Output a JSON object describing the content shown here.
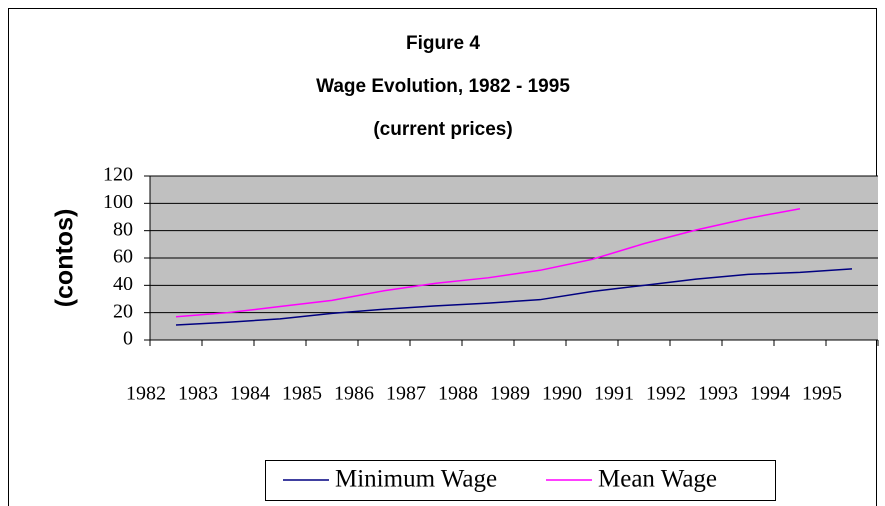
{
  "chart_data": {
    "type": "line",
    "title": "Figure 4",
    "subtitle": "Wage Evolution, 1982 - 1995",
    "note": "(current prices)",
    "y_label": "(contos)",
    "categories": [
      "1982",
      "1983",
      "1984",
      "1985",
      "1986",
      "1987",
      "1988",
      "1989",
      "1990",
      "1991",
      "1992",
      "1993",
      "1994",
      "1995"
    ],
    "series": [
      {
        "name": "Minimum Wage",
        "color": "#000080",
        "values": [
          11,
          13,
          15.5,
          19.5,
          22.5,
          25,
          27,
          29.5,
          35.5,
          40,
          44.5,
          48,
          49.5,
          52
        ]
      },
      {
        "name": "Mean Wage",
        "color": "#ff00ff",
        "values": [
          17,
          20,
          24.5,
          29,
          36,
          41.5,
          45.5,
          51,
          59,
          70.5,
          80.5,
          89,
          96,
          null
        ]
      }
    ],
    "ylim": [
      0,
      120
    ],
    "yticks": [
      0,
      20,
      40,
      60,
      80,
      100,
      120
    ],
    "grid": true,
    "plot_background": "#c0c0c0"
  }
}
